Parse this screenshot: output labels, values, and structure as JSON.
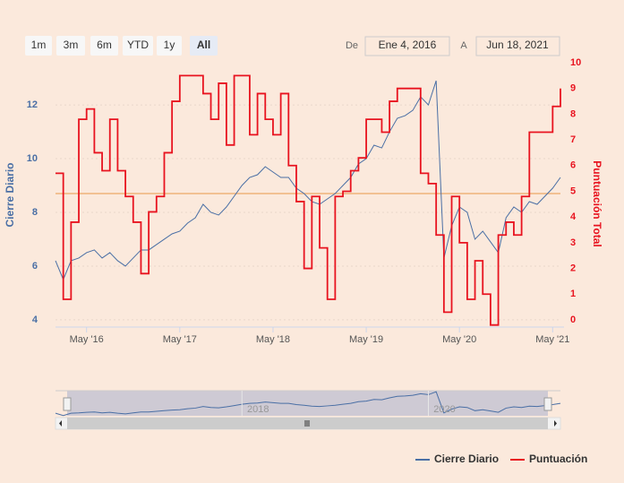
{
  "range_buttons": [
    "1m",
    "3m",
    "6m",
    "YTD",
    "1y",
    "All"
  ],
  "selected_button": 5,
  "range_from_label": "De",
  "range_from": "Ene 4, 2016",
  "range_to_label": "A",
  "range_to": "Jun 18, 2021",
  "chart_data": {
    "type": "line",
    "x": [
      "2016-01",
      "2016-02",
      "2016-03",
      "2016-04",
      "2016-05",
      "2016-06",
      "2016-07",
      "2016-08",
      "2016-09",
      "2016-10",
      "2016-11",
      "2016-12",
      "2017-01",
      "2017-02",
      "2017-03",
      "2017-04",
      "2017-05",
      "2017-06",
      "2017-07",
      "2017-08",
      "2017-09",
      "2017-10",
      "2017-11",
      "2017-12",
      "2018-01",
      "2018-02",
      "2018-03",
      "2018-04",
      "2018-05",
      "2018-06",
      "2018-07",
      "2018-08",
      "2018-09",
      "2018-10",
      "2018-11",
      "2018-12",
      "2019-01",
      "2019-02",
      "2019-03",
      "2019-04",
      "2019-05",
      "2019-06",
      "2019-07",
      "2019-08",
      "2019-09",
      "2019-10",
      "2019-11",
      "2019-12",
      "2020-01",
      "2020-02",
      "2020-03",
      "2020-04",
      "2020-05",
      "2020-06",
      "2020-07",
      "2020-08",
      "2020-09",
      "2020-10",
      "2020-11",
      "2020-12",
      "2021-01",
      "2021-02",
      "2021-03",
      "2021-04",
      "2021-05",
      "2021-06"
    ],
    "xlim": [
      "2016-01",
      "2021-06"
    ],
    "xticks": [
      {
        "value": "2016-05",
        "label": "May '16"
      },
      {
        "value": "2017-05",
        "label": "May '17"
      },
      {
        "value": "2018-05",
        "label": "May '18"
      },
      {
        "value": "2019-05",
        "label": "May '19"
      },
      {
        "value": "2020-05",
        "label": "May '20"
      },
      {
        "value": "2021-05",
        "label": "May '21"
      }
    ],
    "y_label": "Cierre Diario",
    "y2_label": "Puntuación Total",
    "ylim": [
      3.73,
      13.57
    ],
    "yticks": [
      4,
      6,
      8,
      10,
      12
    ],
    "y2lim": [
      -0.28,
      10
    ],
    "y2ticks": [
      0,
      1,
      2,
      3,
      4,
      5,
      6,
      7,
      8,
      9,
      10
    ],
    "grid": true,
    "plot_line": {
      "value": 8.7,
      "color": "#f0b27a"
    },
    "series": [
      {
        "name": "Cierre Diario",
        "color": "#4a6fa5",
        "values": [
          6.2,
          5.5,
          6.2,
          6.3,
          6.5,
          6.6,
          6.3,
          6.5,
          6.2,
          6.0,
          6.3,
          6.6,
          6.6,
          6.8,
          7.0,
          7.2,
          7.3,
          7.6,
          7.8,
          8.3,
          8.0,
          7.9,
          8.2,
          8.6,
          9.0,
          9.3,
          9.4,
          9.7,
          9.5,
          9.3,
          9.3,
          8.9,
          8.7,
          8.4,
          8.3,
          8.5,
          8.7,
          9.0,
          9.3,
          9.8,
          10.0,
          10.5,
          10.4,
          11.0,
          11.5,
          11.6,
          11.8,
          12.3,
          12.0,
          12.9,
          6.3,
          7.5,
          8.2,
          8.0,
          7.0,
          7.3,
          6.9,
          6.5,
          7.8,
          8.2,
          8.0,
          8.4,
          8.3,
          8.6,
          8.9,
          9.3
        ]
      },
      {
        "name": "Puntuación",
        "color": "#e8131f",
        "axis": "y2",
        "step": true,
        "values": [
          5.7,
          0.8,
          3.8,
          7.8,
          8.2,
          6.5,
          5.8,
          7.8,
          5.8,
          4.8,
          3.8,
          1.8,
          4.2,
          4.8,
          6.5,
          8.5,
          9.5,
          9.5,
          9.5,
          8.8,
          7.8,
          9.2,
          6.8,
          9.5,
          9.5,
          7.2,
          8.8,
          7.8,
          7.2,
          8.8,
          6.0,
          4.6,
          2.0,
          4.8,
          2.8,
          0.8,
          4.8,
          5.0,
          5.8,
          6.3,
          7.8,
          7.8,
          7.3,
          8.5,
          9.0,
          9.0,
          9.0,
          5.7,
          5.3,
          3.3,
          0.3,
          4.8,
          3.0,
          0.8,
          2.3,
          1.0,
          -0.2,
          3.3,
          3.8,
          3.3,
          4.8,
          7.3,
          7.3,
          7.3,
          8.3,
          9.0
        ]
      }
    ],
    "navigator_ticks": [
      {
        "value": "2018-01",
        "label": "2018"
      },
      {
        "value": "2020-01",
        "label": "2020"
      }
    ],
    "legend": "bottom-right"
  }
}
